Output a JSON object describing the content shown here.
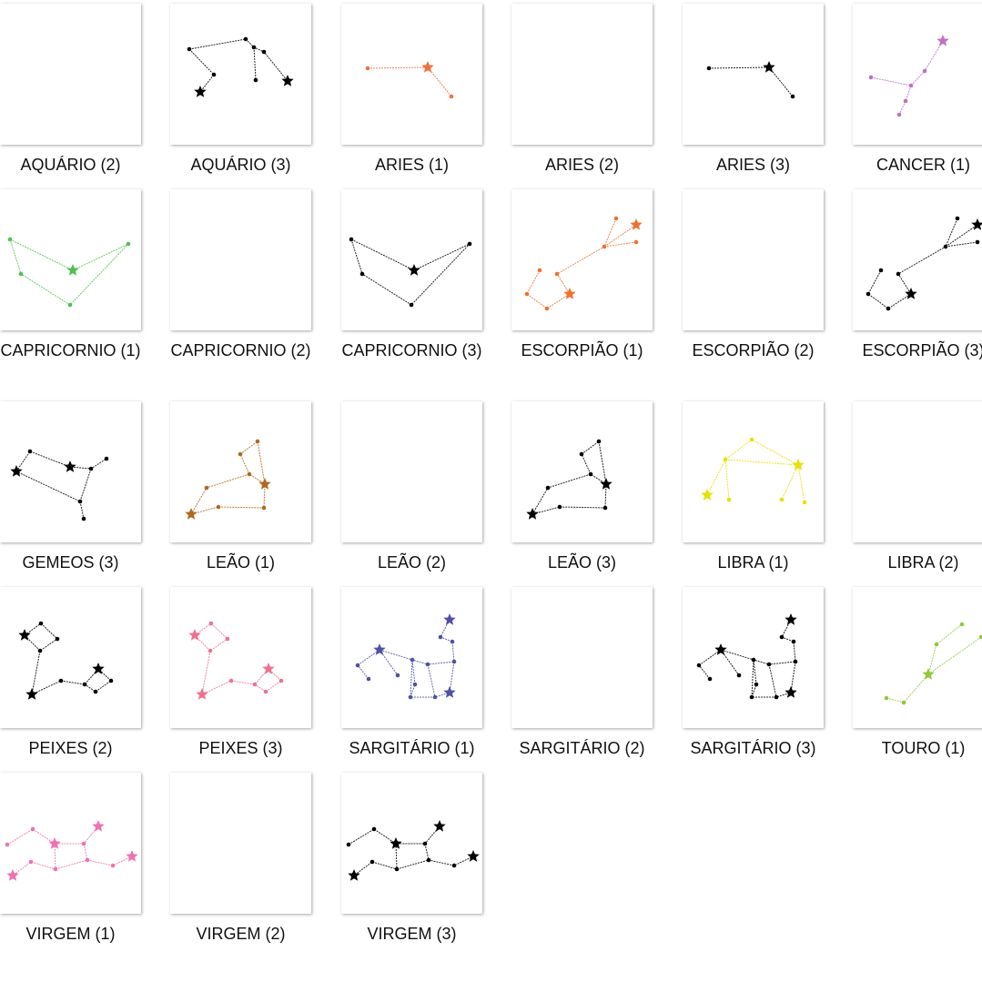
{
  "files": [
    "AQUÁRIO (2)",
    "AQUÁRIO (3)",
    "ARIES (1)",
    "ARIES (2)",
    "ARIES (3)",
    "CANCER (1)",
    "CAPRICORNIO (1)",
    "CAPRICORNIO (2)",
    "CAPRICORNIO (3)",
    "ESCORPIÃO (1)",
    "ESCORPIÃO (2)",
    "ESCORPIÃO (3)",
    "GEMEOS (3)",
    "LEÃO (1)",
    "LEÃO (2)",
    "LEÃO (3)",
    "LIBRA (1)",
    "LIBRA (2)",
    "PEIXES (2)",
    "PEIXES (3)",
    "SARGITÁRIO (1)",
    "SARGITÁRIO (2)",
    "SARGITÁRIO (3)",
    "TOURO (1)",
    "VIRGEM (1)",
    "VIRGEM (2)",
    "VIRGEM (3)"
  ]
}
